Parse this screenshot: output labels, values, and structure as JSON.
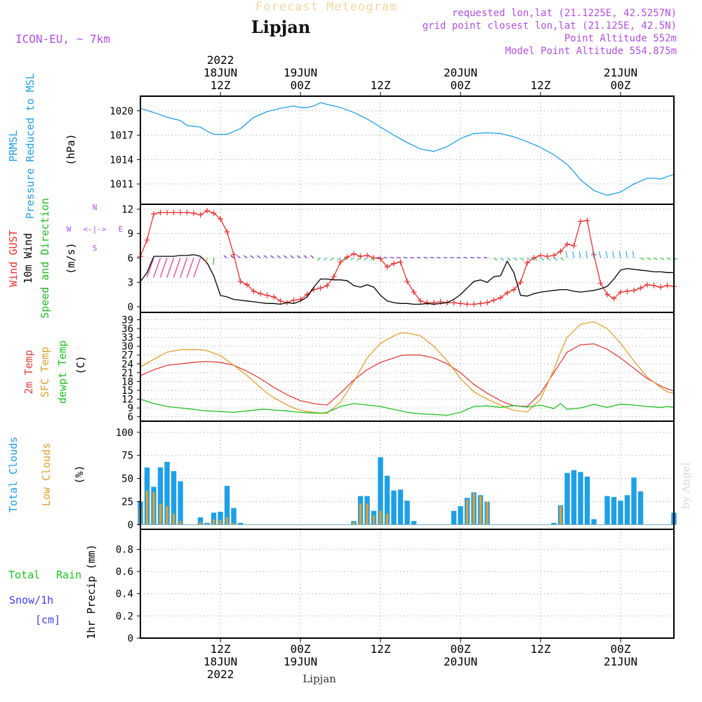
{
  "header": {
    "watermark_title": "Forecast Meteogram",
    "location": "Lipjan",
    "model": "ICON-EU, ~ 7km",
    "requested": "requested lon,lat (21.1225E, 42.5257N)",
    "grid_point": "grid point closest lon,lat (21.125E, 42.5N)",
    "point_altitude": "Point Altitude 552m",
    "model_altitude": "Model Point Altitude 554.875m"
  },
  "top_axis": [
    {
      "hours": 12,
      "lines": [
        "2022",
        "18JUN",
        "12Z"
      ]
    },
    {
      "hours": 24,
      "lines": [
        "19JUN",
        "00Z"
      ]
    },
    {
      "hours": 36,
      "lines": [
        "12Z"
      ]
    },
    {
      "hours": 48,
      "lines": [
        "20JUN",
        "00Z"
      ]
    },
    {
      "hours": 60,
      "lines": [
        "12Z"
      ]
    },
    {
      "hours": 72,
      "lines": [
        "21JUN",
        "00Z"
      ]
    }
  ],
  "bottom_axis": [
    {
      "hours": 12,
      "lines": [
        "12Z",
        "18JUN",
        "2022"
      ]
    },
    {
      "hours": 24,
      "lines": [
        "00Z",
        "19JUN"
      ]
    },
    {
      "hours": 36,
      "lines": [
        "12Z"
      ]
    },
    {
      "hours": 48,
      "lines": [
        "00Z",
        "20JUN"
      ]
    },
    {
      "hours": 60,
      "lines": [
        "12Z"
      ]
    },
    {
      "hours": 72,
      "lines": [
        "00Z",
        "21JUN"
      ]
    }
  ],
  "footer_location": "Lipjan",
  "credit": "by Angel",
  "compass": {
    "n": "N",
    "s": "S",
    "w": "W",
    "e": "E"
  },
  "colors": {
    "pressure": "#1e9fe6",
    "gust": "#e83030",
    "wind": "#000000",
    "direction": "#22bb22",
    "temp2m": "#e04040",
    "sfc_temp": "#e0a030",
    "dewpt": "#20c020",
    "total_clouds": "#1e9fe6",
    "low_clouds": "#e0a030",
    "rain": "#20c020",
    "snow": "#4040ff",
    "purple": "#b050e0"
  },
  "panels": {
    "pressure": {
      "labels": [
        "PRMSL",
        "Pressure Reduced to MSL"
      ],
      "unit": "(hPa)"
    },
    "wind": {
      "labels": [
        "Wind GUST",
        "10m Wind",
        "Speed and Direction"
      ],
      "unit": "(m/s)"
    },
    "temp": {
      "labels": [
        "2m Temp",
        "SFC Temp",
        "dewpt Temp"
      ],
      "unit": "(C)"
    },
    "clouds": {
      "labels": [
        "Total Clouds",
        "Low Clouds"
      ],
      "unit": "(%)"
    },
    "precip": {
      "labels": [
        "Total",
        "Rain",
        "Snow/1h",
        "[cm]"
      ],
      "unit": "1hr Precip (mm)"
    }
  },
  "chart_data": [
    {
      "type": "line",
      "name": "pressure",
      "ylabel": "Pressure Reduced to MSL (hPa)",
      "yticks": [
        1011,
        1014,
        1017,
        1020
      ],
      "ylim": [
        1008.5,
        1021.8
      ],
      "x_hours": [
        0,
        2,
        4,
        6,
        7,
        9,
        10,
        11,
        13,
        15,
        17,
        19,
        21,
        23,
        24,
        25,
        26,
        27,
        28,
        30,
        32,
        34,
        36,
        38,
        40,
        42,
        44,
        46,
        48,
        50,
        52,
        54,
        56,
        58,
        60,
        62,
        64,
        65,
        66,
        68,
        70,
        72,
        74,
        76,
        77,
        78,
        80
      ],
      "series": [
        {
          "name": "PRMSL",
          "values": [
            1020.3,
            1019.8,
            1019.2,
            1018.8,
            1018.2,
            1018.0,
            1017.5,
            1017.1,
            1017.1,
            1017.8,
            1019.2,
            1019.9,
            1020.3,
            1020.6,
            1020.4,
            1020.4,
            1020.6,
            1021.0,
            1020.8,
            1020.4,
            1019.8,
            1019.0,
            1018.0,
            1017.0,
            1016.1,
            1015.3,
            1015.0,
            1015.6,
            1016.6,
            1017.2,
            1017.3,
            1017.2,
            1016.8,
            1016.2,
            1015.5,
            1014.6,
            1013.4,
            1012.5,
            1011.5,
            1010.2,
            1009.6,
            1010.0,
            1011.0,
            1011.7,
            1011.7,
            1011.6,
            1012.2
          ]
        }
      ]
    },
    {
      "type": "line",
      "name": "wind",
      "ylabel": "Speed (m/s)",
      "yticks": [
        0,
        3,
        6,
        9,
        12
      ],
      "ylim": [
        -0.7,
        12.6
      ],
      "x_hours": [
        0,
        1,
        2,
        3,
        4,
        5,
        6,
        7,
        8,
        9,
        10,
        11,
        12,
        13,
        14,
        15,
        16,
        17,
        18,
        19,
        20,
        21,
        22,
        23,
        24,
        25,
        26,
        27,
        28,
        29,
        30,
        31,
        32,
        33,
        34,
        35,
        36,
        37,
        38,
        39,
        40,
        41,
        42,
        43,
        44,
        45,
        46,
        47,
        48,
        49,
        50,
        51,
        52,
        53,
        54,
        55,
        56,
        57,
        58,
        59,
        60,
        61,
        62,
        63,
        64,
        65,
        66,
        67,
        68,
        69,
        70,
        71,
        72,
        73,
        74,
        75,
        76,
        77,
        78,
        79,
        80
      ],
      "series": [
        {
          "name": "Wind GUST",
          "values": [
            6.2,
            8.2,
            11.4,
            11.6,
            11.6,
            11.6,
            11.6,
            11.6,
            11.5,
            11.3,
            11.8,
            11.5,
            10.8,
            9.2,
            6.4,
            3.1,
            2.7,
            1.9,
            1.6,
            1.4,
            1.2,
            0.7,
            0.5,
            0.8,
            0.9,
            1.5,
            2.1,
            2.3,
            2.6,
            3.7,
            5.5,
            6.1,
            6.5,
            6.2,
            6.3,
            6.0,
            5.9,
            4.9,
            5.3,
            5.5,
            3.1,
            1.8,
            0.7,
            0.5,
            0.5,
            0.6,
            0.5,
            0.5,
            0.4,
            0.3,
            0.3,
            0.4,
            0.5,
            0.8,
            1.1,
            1.7,
            2.1,
            3.0,
            5.4,
            6.0,
            6.3,
            6.2,
            6.3,
            6.8,
            7.7,
            7.5,
            10.5,
            10.6,
            6.4,
            2.9,
            1.5,
            1.0,
            1.8,
            1.9,
            2.0,
            2.3,
            2.7,
            2.6,
            2.4,
            2.6,
            2.5
          ]
        },
        {
          "name": "10m Wind",
          "values": [
            3.1,
            4.2,
            6.2,
            6.2,
            6.2,
            6.2,
            6.3,
            6.3,
            6.4,
            6.2,
            5.4,
            3.8,
            1.4,
            1.2,
            0.9,
            0.8,
            0.7,
            0.6,
            0.5,
            0.4,
            0.4,
            0.3,
            0.5,
            0.4,
            0.7,
            1.2,
            2.4,
            3.4,
            3.4,
            3.3,
            3.3,
            3.2,
            2.6,
            2.4,
            2.7,
            2.4,
            1.4,
            0.7,
            0.5,
            0.4,
            0.4,
            0.3,
            0.3,
            0.4,
            0.3,
            0.4,
            0.5,
            0.9,
            1.5,
            2.3,
            3.1,
            3.3,
            3.0,
            3.7,
            3.8,
            5.6,
            4.2,
            1.4,
            1.3,
            1.6,
            1.8,
            1.9,
            2.0,
            2.1,
            2.1,
            1.9,
            1.8,
            1.9,
            2.0,
            2.2,
            2.5,
            3.4,
            4.5,
            4.7,
            4.6,
            4.5,
            4.4,
            4.3,
            4.3,
            4.2,
            4.2
          ]
        }
      ]
    },
    {
      "type": "line",
      "name": "temp",
      "ylabel": "Temperature (C)",
      "yticks": [
        6,
        9,
        12,
        15,
        18,
        21,
        24,
        27,
        30,
        33,
        36,
        39
      ],
      "ylim": [
        4.5,
        41.5
      ],
      "x_hours": [
        0,
        2,
        4,
        6,
        8,
        9,
        10,
        12,
        14,
        16,
        18,
        19,
        20,
        22,
        23,
        24,
        25,
        26,
        27,
        28,
        30,
        32,
        34,
        36,
        38,
        39,
        40,
        42,
        44,
        46,
        48,
        50,
        52,
        54,
        55,
        56,
        58,
        60,
        62,
        63,
        64,
        66,
        68,
        70,
        72,
        74,
        76,
        78,
        79,
        80
      ],
      "series": [
        {
          "name": "2m Temp",
          "values": [
            20,
            22,
            23.5,
            24,
            24.5,
            24.7,
            24.8,
            24.5,
            23.5,
            21.5,
            19,
            17.5,
            16,
            13.5,
            12.5,
            11.5,
            11,
            10.5,
            10.2,
            10,
            14,
            18.5,
            22,
            24.5,
            26,
            26.8,
            27,
            27,
            26,
            24,
            21,
            17,
            14,
            11.5,
            10.5,
            9.8,
            9.5,
            14,
            21,
            24.5,
            28,
            30.5,
            30.8,
            29,
            26,
            22.5,
            19,
            16.5,
            15.5,
            14.8
          ]
        },
        {
          "name": "SFC Temp",
          "values": [
            23,
            25.5,
            28,
            28.8,
            28.9,
            28.8,
            28.5,
            26.8,
            23.5,
            20,
            16,
            14,
            12.5,
            10,
            9,
            8.2,
            7.8,
            7.5,
            7.3,
            7.2,
            11,
            18,
            26,
            31,
            33.5,
            34.5,
            34.5,
            33.5,
            30,
            25,
            19,
            14.5,
            12,
            10,
            9,
            8.2,
            7.6,
            12,
            22,
            28,
            33,
            37.5,
            38.3,
            36,
            31,
            25,
            19.5,
            16,
            14.5,
            14
          ]
        },
        {
          "name": "dewpt Temp",
          "values": [
            12,
            10.5,
            9.5,
            9,
            8.5,
            8.2,
            8,
            7.8,
            7.5,
            8,
            8.5,
            8.5,
            8.3,
            8,
            7.7,
            7.5,
            7.4,
            7.3,
            7.2,
            7.5,
            9.5,
            10.5,
            10,
            9.5,
            8.5,
            8,
            7.5,
            7,
            6.8,
            6.5,
            7.5,
            9.5,
            9.7,
            9.2,
            9.5,
            9.8,
            9.3,
            10,
            8.8,
            10.5,
            8.5,
            9,
            10.2,
            9.2,
            10.3,
            10,
            9.5,
            9.2,
            9.5,
            9.2
          ]
        }
      ]
    },
    {
      "type": "bar",
      "name": "clouds",
      "ylabel": "Clouds (%)",
      "yticks": [
        0,
        25,
        50,
        75,
        100
      ],
      "ylim": [
        -5,
        112
      ],
      "x_hours": [
        0,
        1,
        2,
        3,
        4,
        5,
        6,
        7,
        8,
        9,
        10,
        11,
        12,
        13,
        14,
        15,
        16,
        17,
        18,
        19,
        20,
        21,
        22,
        23,
        24,
        25,
        26,
        27,
        28,
        29,
        30,
        31,
        32,
        33,
        34,
        35,
        36,
        37,
        38,
        39,
        40,
        41,
        42,
        43,
        44,
        45,
        46,
        47,
        48,
        49,
        50,
        51,
        52,
        53,
        54,
        55,
        56,
        57,
        58,
        59,
        60,
        61,
        62,
        63,
        64,
        65,
        66,
        67,
        68,
        69,
        70,
        71,
        72,
        73,
        74,
        75,
        76,
        77,
        78,
        79,
        80
      ],
      "series": [
        {
          "name": "Total Clouds",
          "values": [
            25,
            62,
            41,
            62,
            68,
            58,
            47,
            0,
            0,
            8,
            2,
            13,
            14,
            42,
            18,
            2,
            0,
            0,
            0,
            0,
            0,
            0,
            0,
            0,
            0,
            0,
            0,
            0,
            0,
            0,
            0,
            0,
            4,
            31,
            31,
            15,
            73,
            53,
            37,
            38,
            26,
            4,
            0,
            0,
            0,
            0,
            0,
            15,
            20,
            29,
            35,
            32,
            25,
            0,
            0,
            0,
            0,
            0,
            0,
            0,
            0,
            0,
            2,
            21,
            56,
            59,
            57,
            52,
            6,
            0,
            31,
            30,
            26,
            32,
            51,
            36,
            0,
            0,
            0,
            0,
            13
          ]
        },
        {
          "name": "Low Clouds",
          "values": [
            18,
            37,
            35,
            23,
            20,
            12,
            4,
            0,
            0,
            3,
            1,
            6,
            5,
            8,
            2,
            0,
            0,
            0,
            0,
            0,
            0,
            0,
            0,
            0,
            0,
            0,
            0,
            0,
            0,
            0,
            0,
            0,
            3,
            23,
            23,
            10,
            15,
            12,
            0,
            0,
            0,
            0,
            0,
            0,
            0,
            0,
            0,
            0,
            0,
            27,
            34,
            31,
            25,
            0,
            0,
            0,
            0,
            0,
            0,
            0,
            0,
            0,
            0,
            20,
            0,
            0,
            0,
            0,
            0,
            0,
            0,
            0,
            0,
            0,
            0,
            0,
            0,
            0,
            0,
            0,
            0
          ]
        }
      ]
    },
    {
      "type": "bar",
      "name": "precip",
      "ylabel": "1hr Precip (mm)",
      "yticks": [
        0,
        0.2,
        0.4,
        0.6,
        0.8
      ],
      "ylim": [
        0,
        0.98
      ],
      "series": [
        {
          "name": "Total Rain",
          "values": []
        },
        {
          "name": "Snow/1h [cm]",
          "values": []
        }
      ]
    }
  ]
}
